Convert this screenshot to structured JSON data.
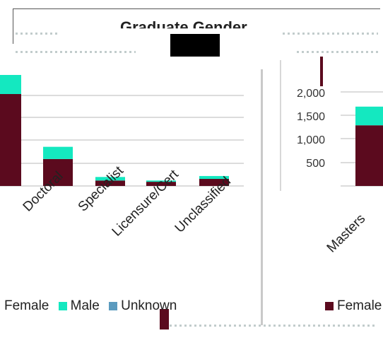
{
  "title": "Graduate Gender",
  "colors": {
    "female": "#5b0a1e",
    "male": "#14e8c0",
    "unknown": "#5b9bbf",
    "grid": "#b8b8b8"
  },
  "left_chart": {
    "categories": [
      "Doctoral",
      "Specialist",
      "Licensure/Cert",
      "Unclassified"
    ]
  },
  "right_chart": {
    "y_ticks": [
      "2,000",
      "1,500",
      "1,000",
      "500"
    ],
    "categories": [
      "Masters"
    ]
  },
  "chart_data": [
    {
      "type": "bar",
      "title": "Graduate Gender",
      "categories": [
        "Doctoral",
        "Specialist",
        "Licensure/Cert",
        "Unclassified"
      ],
      "series": [
        {
          "name": "Female",
          "values": [
            420,
            85,
            65,
            110
          ]
        },
        {
          "name": "Male",
          "values": [
            190,
            55,
            20,
            45
          ]
        },
        {
          "name": "Unknown",
          "values": [
            0,
            0,
            0,
            0
          ]
        }
      ]
    },
    {
      "type": "bar",
      "categories": [
        "Masters"
      ],
      "y_ticks": [
        "2,000",
        "1,500",
        "1,000",
        "500"
      ],
      "series": [
        {
          "name": "Female",
          "values": [
            1300
          ]
        },
        {
          "name": "Male",
          "values": [
            400
          ]
        }
      ]
    }
  ],
  "legend": {
    "female_left": "Female",
    "male": "Male",
    "unknown": "Unknown",
    "female_right": "Female"
  }
}
